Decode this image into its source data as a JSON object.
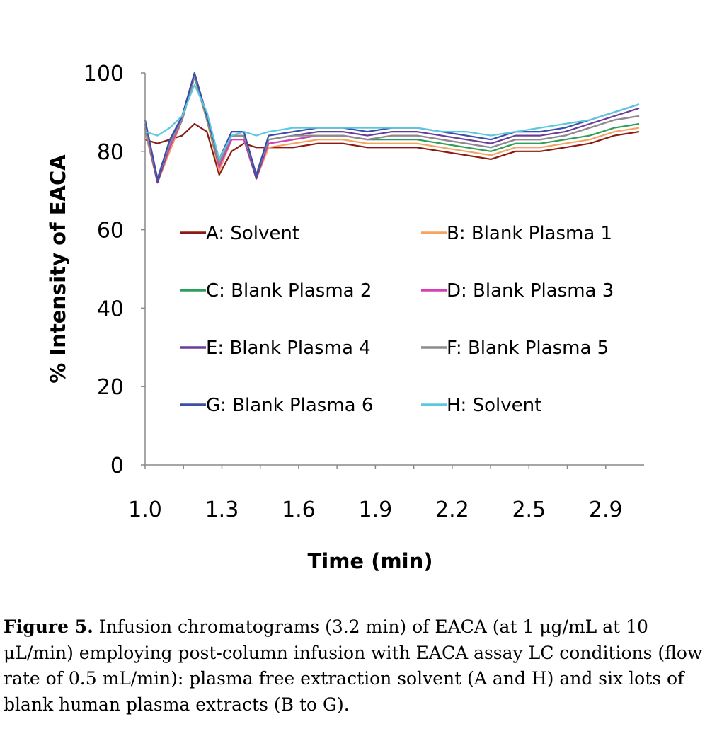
{
  "chart_data": {
    "type": "line",
    "ylabel": "% Intensity of EACA",
    "xlabel": "Time (min)",
    "ylim": [
      0,
      100
    ],
    "xlim": [
      1.0,
      3.02
    ],
    "y_ticks": [
      "0",
      "20",
      "40",
      "60",
      "80",
      "100"
    ],
    "x_tick_labels": [
      "1.0",
      "1.3",
      "1.6",
      "1.9",
      "2.2",
      "2.5",
      "2.9"
    ],
    "grid": false,
    "legend_position": "inside-center",
    "series": [
      {
        "name": "A: Solvent",
        "color": "#8b1a12",
        "x": [
          1.0,
          1.05,
          1.1,
          1.15,
          1.2,
          1.25,
          1.3,
          1.35,
          1.4,
          1.45,
          1.5,
          1.6,
          1.7,
          1.8,
          1.9,
          2.0,
          2.1,
          2.2,
          2.3,
          2.4,
          2.5,
          2.6,
          2.7,
          2.8,
          2.9,
          3.0
        ],
        "y": [
          83,
          82,
          83,
          84,
          87,
          85,
          74,
          80,
          82,
          81,
          81,
          81,
          82,
          82,
          81,
          81,
          81,
          80,
          79,
          78,
          80,
          80,
          81,
          82,
          84,
          85
        ]
      },
      {
        "name": "B: Blank Plasma 1",
        "color": "#f4a460",
        "x": [
          1.0,
          1.05,
          1.1,
          1.15,
          1.2,
          1.25,
          1.3,
          1.35,
          1.4,
          1.45,
          1.5,
          1.6,
          1.7,
          1.8,
          1.9,
          2.0,
          2.1,
          2.2,
          2.3,
          2.4,
          2.5,
          2.6,
          2.7,
          2.8,
          2.9,
          3.0
        ],
        "y": [
          85,
          72,
          80,
          88,
          99,
          88,
          75,
          83,
          83,
          73,
          81,
          82,
          83,
          83,
          82,
          82,
          82,
          81,
          80,
          79,
          81,
          81,
          82,
          83,
          85,
          86
        ]
      },
      {
        "name": "C: Blank Plasma 2",
        "color": "#2e9e5b",
        "x": [
          1.0,
          1.05,
          1.1,
          1.15,
          1.2,
          1.25,
          1.3,
          1.35,
          1.4,
          1.45,
          1.5,
          1.6,
          1.7,
          1.8,
          1.9,
          2.0,
          2.1,
          2.2,
          2.3,
          2.4,
          2.5,
          2.6,
          2.7,
          2.8,
          2.9,
          3.0
        ],
        "y": [
          86,
          72,
          81,
          88,
          99,
          88,
          76,
          84,
          84,
          74,
          82,
          83,
          84,
          84,
          83,
          83,
          83,
          82,
          81,
          80,
          82,
          82,
          83,
          84,
          86,
          87
        ]
      },
      {
        "name": "D: Blank Plasma 3",
        "color": "#d63fb5",
        "x": [
          1.0,
          1.05,
          1.1,
          1.15,
          1.2,
          1.25,
          1.3,
          1.35,
          1.4,
          1.45,
          1.5,
          1.6,
          1.7,
          1.8,
          1.9,
          2.0,
          2.1,
          2.2,
          2.3,
          2.4,
          2.5,
          2.6,
          2.7,
          2.8,
          2.9,
          3.0
        ],
        "y": [
          86,
          72,
          81,
          88,
          99,
          89,
          76,
          83,
          83,
          73,
          82,
          83,
          84,
          84,
          83,
          84,
          84,
          83,
          82,
          81,
          83,
          83,
          84,
          86,
          88,
          89
        ]
      },
      {
        "name": "E: Blank Plasma 4",
        "color": "#6a3d9a",
        "x": [
          1.0,
          1.05,
          1.1,
          1.15,
          1.2,
          1.25,
          1.3,
          1.35,
          1.4,
          1.45,
          1.5,
          1.6,
          1.7,
          1.8,
          1.9,
          2.0,
          2.1,
          2.2,
          2.3,
          2.4,
          2.5,
          2.6,
          2.7,
          2.8,
          2.9,
          3.0
        ],
        "y": [
          87,
          72,
          82,
          89,
          100,
          89,
          77,
          84,
          84,
          73,
          83,
          84,
          85,
          85,
          84,
          85,
          85,
          84,
          83,
          82,
          84,
          84,
          85,
          87,
          89,
          91
        ]
      },
      {
        "name": "F: Blank Plasma 5",
        "color": "#8c8c8c",
        "x": [
          1.0,
          1.05,
          1.1,
          1.15,
          1.2,
          1.25,
          1.3,
          1.35,
          1.4,
          1.45,
          1.5,
          1.6,
          1.7,
          1.8,
          1.9,
          2.0,
          2.1,
          2.2,
          2.3,
          2.4,
          2.5,
          2.6,
          2.7,
          2.8,
          2.9,
          3.0
        ],
        "y": [
          86,
          73,
          82,
          88,
          99,
          88,
          77,
          84,
          84,
          74,
          83,
          84,
          84,
          84,
          83,
          84,
          84,
          83,
          82,
          81,
          83,
          83,
          84,
          86,
          88,
          89
        ]
      },
      {
        "name": "G: Blank Plasma 6",
        "color": "#3b4fa8",
        "x": [
          1.0,
          1.05,
          1.1,
          1.15,
          1.2,
          1.25,
          1.3,
          1.35,
          1.4,
          1.45,
          1.5,
          1.6,
          1.7,
          1.8,
          1.9,
          2.0,
          2.1,
          2.2,
          2.3,
          2.4,
          2.5,
          2.6,
          2.7,
          2.8,
          2.9,
          3.0
        ],
        "y": [
          88,
          73,
          83,
          89,
          100,
          89,
          78,
          85,
          85,
          74,
          84,
          85,
          86,
          86,
          85,
          86,
          86,
          85,
          84,
          83,
          85,
          85,
          86,
          88,
          90,
          92
        ]
      },
      {
        "name": "H: Solvent",
        "color": "#5bc8e0",
        "x": [
          1.0,
          1.05,
          1.1,
          1.15,
          1.2,
          1.25,
          1.3,
          1.35,
          1.4,
          1.45,
          1.5,
          1.6,
          1.7,
          1.8,
          1.9,
          2.0,
          2.1,
          2.2,
          2.3,
          2.4,
          2.5,
          2.6,
          2.7,
          2.8,
          2.9,
          3.0
        ],
        "y": [
          85,
          84,
          86,
          89,
          97,
          90,
          78,
          84,
          85,
          84,
          85,
          86,
          86,
          86,
          86,
          86,
          86,
          85,
          85,
          84,
          85,
          86,
          87,
          88,
          90,
          92
        ]
      }
    ]
  },
  "caption": {
    "label": "Figure 5.",
    "text": " Infusion chromatograms (3.2 min) of EACA (at 1 μg/mL at 10 μL/min) employing post-column infusion with EACA assay LC conditions (flow rate of 0.5 mL/min): plasma free extraction solvent (A and H) and six lots of blank human plasma extracts (B to G)."
  }
}
